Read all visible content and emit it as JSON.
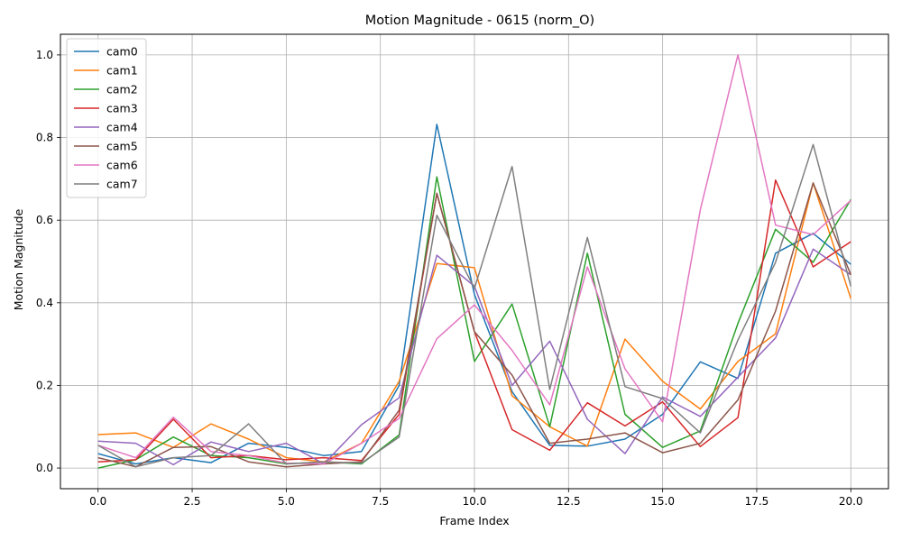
{
  "chart_data": {
    "type": "line",
    "title": "Motion Magnitude - 0615 (norm_O)",
    "xlabel": "Frame Index",
    "ylabel": "Motion Magnitude",
    "xlim": [
      -1,
      21
    ],
    "ylim": [
      -0.05,
      1.05
    ],
    "xticks": [
      0.0,
      2.5,
      5.0,
      7.5,
      10.0,
      12.5,
      15.0,
      17.5,
      20.0
    ],
    "xtick_labels": [
      "0.0",
      "2.5",
      "5.0",
      "7.5",
      "10.0",
      "12.5",
      "15.0",
      "17.5",
      "20.0"
    ],
    "yticks": [
      0.0,
      0.2,
      0.4,
      0.6,
      0.8,
      1.0
    ],
    "ytick_labels": [
      "0.0",
      "0.2",
      "0.4",
      "0.6",
      "0.8",
      "1.0"
    ],
    "grid": true,
    "legend_position": "upper-left",
    "x": [
      0,
      1,
      2,
      3,
      4,
      5,
      6,
      7,
      8,
      9,
      10,
      11,
      12,
      13,
      14,
      15,
      16,
      17,
      18,
      19,
      20
    ],
    "series": [
      {
        "name": "cam0",
        "color": "#1f77b4",
        "values": [
          0.035,
          0.01,
          0.025,
          0.013,
          0.06,
          0.05,
          0.03,
          0.04,
          0.2,
          0.832,
          0.42,
          0.185,
          0.055,
          0.053,
          0.07,
          0.13,
          0.257,
          0.217,
          0.52,
          0.568,
          0.493
        ]
      },
      {
        "name": "cam1",
        "color": "#ff7f0e",
        "values": [
          0.081,
          0.085,
          0.05,
          0.107,
          0.07,
          0.025,
          0.015,
          0.06,
          0.21,
          0.495,
          0.485,
          0.175,
          0.1,
          0.053,
          0.312,
          0.21,
          0.143,
          0.258,
          0.325,
          0.69,
          0.41
        ]
      },
      {
        "name": "cam2",
        "color": "#2ca02c",
        "values": [
          0.0,
          0.02,
          0.075,
          0.03,
          0.025,
          0.01,
          0.015,
          0.01,
          0.08,
          0.705,
          0.258,
          0.397,
          0.1,
          0.52,
          0.13,
          0.05,
          0.09,
          0.35,
          0.578,
          0.498,
          0.65
        ]
      },
      {
        "name": "cam3",
        "color": "#d62728",
        "values": [
          0.015,
          0.02,
          0.118,
          0.025,
          0.03,
          0.02,
          0.025,
          0.018,
          0.13,
          0.665,
          0.33,
          0.093,
          0.043,
          0.158,
          0.102,
          0.16,
          0.052,
          0.122,
          0.697,
          0.487,
          0.548
        ]
      },
      {
        "name": "cam4",
        "color": "#9467bd",
        "values": [
          0.065,
          0.06,
          0.008,
          0.063,
          0.04,
          0.06,
          0.01,
          0.105,
          0.17,
          0.515,
          0.44,
          0.2,
          0.307,
          0.118,
          0.035,
          0.172,
          0.125,
          0.22,
          0.315,
          0.53,
          0.468
        ]
      },
      {
        "name": "cam5",
        "color": "#8c564b",
        "values": [
          0.025,
          0.003,
          0.05,
          0.052,
          0.015,
          0.003,
          0.01,
          0.015,
          0.14,
          0.665,
          0.33,
          0.225,
          0.06,
          0.07,
          0.085,
          0.037,
          0.06,
          0.165,
          0.38,
          0.69,
          0.468
        ]
      },
      {
        "name": "cam6",
        "color": "#e377c2",
        "values": [
          0.055,
          0.025,
          0.123,
          0.04,
          0.03,
          0.012,
          0.01,
          0.06,
          0.12,
          0.313,
          0.395,
          0.285,
          0.153,
          0.487,
          0.24,
          0.112,
          0.625,
          1.0,
          0.588,
          0.565,
          0.648
        ]
      },
      {
        "name": "cam7",
        "color": "#7f7f7f",
        "values": [
          0.055,
          0.003,
          0.025,
          0.03,
          0.107,
          0.01,
          0.015,
          0.012,
          0.075,
          0.612,
          0.435,
          0.73,
          0.19,
          0.558,
          0.197,
          0.168,
          0.085,
          0.31,
          0.498,
          0.783,
          0.44
        ]
      }
    ]
  }
}
